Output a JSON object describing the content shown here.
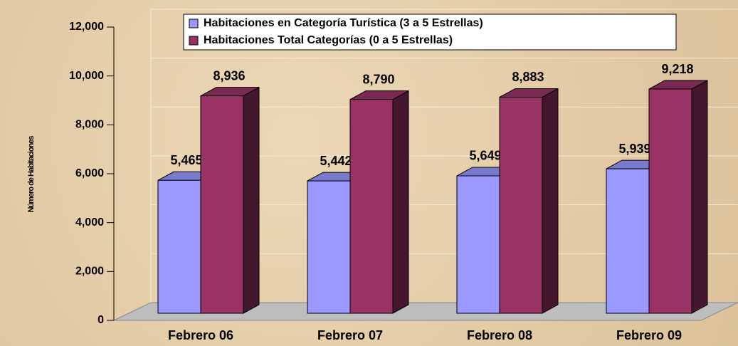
{
  "chart_data": {
    "type": "bar3d",
    "y_label": "Número de Habitaciones",
    "categories": [
      "Febrero 06",
      "Febrero 07",
      "Febrero 08",
      "Febrero 09"
    ],
    "series": [
      {
        "name": "Habitaciones en Categoría Turística (3 a 5 Estrellas)",
        "color": "#9999ff",
        "values": [
          5465,
          5442,
          5649,
          5939
        ],
        "value_labels": [
          "5,465",
          "5,442",
          "5,649",
          "5,939"
        ]
      },
      {
        "name": "Habitaciones Total Categorías (0 a 5 Estrellas)",
        "color": "#993366",
        "values": [
          8936,
          8790,
          8883,
          9218
        ],
        "value_labels": [
          "8,936",
          "8,790",
          "8,883",
          "9,218"
        ]
      }
    ],
    "ylim": [
      0,
      12000
    ],
    "yticks": [
      0,
      {
        "value": 2000,
        "label": "2,000"
      },
      {
        "value": 4000,
        "label": "4,000"
      },
      {
        "value": 6000,
        "label": "6,000"
      },
      {
        "value": 8000,
        "label": "8,000"
      },
      {
        "value": 10000,
        "label": "10,000"
      },
      {
        "value": 12000,
        "label": "12,000"
      }
    ],
    "grid": true
  }
}
